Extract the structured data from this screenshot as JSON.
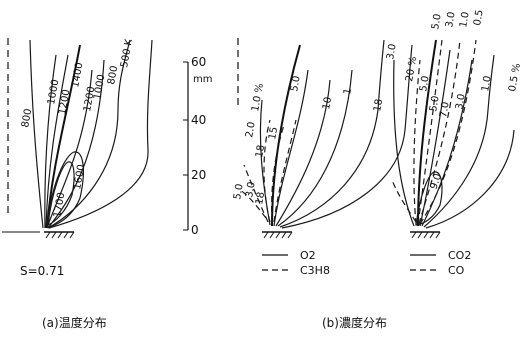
{
  "panel_a": {
    "temperature_labels": [
      "800",
      "1000",
      "1200",
      "1400",
      "1200",
      "1000",
      "800",
      "500 K",
      "1700",
      "1600"
    ],
    "swirl": "S=0.71",
    "caption": "(a)温度分布"
  },
  "axis": {
    "ticks": [
      "60",
      "40",
      "20",
      "0"
    ],
    "unit": "mm"
  },
  "panel_b_left": {
    "labels": [
      "1.0 %",
      "15",
      "2.0",
      "18",
      "5.0",
      "3.0",
      "18",
      "5.0",
      "10",
      "1",
      "18",
      "20 %"
    ],
    "legend": [
      {
        "label": "O2",
        "style": "solid"
      },
      {
        "label": "C3H8",
        "style": "dashed"
      }
    ]
  },
  "panel_b_right": {
    "labels": [
      "3.0",
      "5.0",
      "3.0",
      "1.0",
      "0.5",
      "5.0",
      "7.0",
      "5.0",
      "3.0",
      "9.0",
      "1.0",
      "0.5 %"
    ],
    "legend": [
      {
        "label": "CO2",
        "style": "solid"
      },
      {
        "label": "CO",
        "style": "dashed"
      }
    ]
  },
  "caption_b": "(b)濃度分布"
}
